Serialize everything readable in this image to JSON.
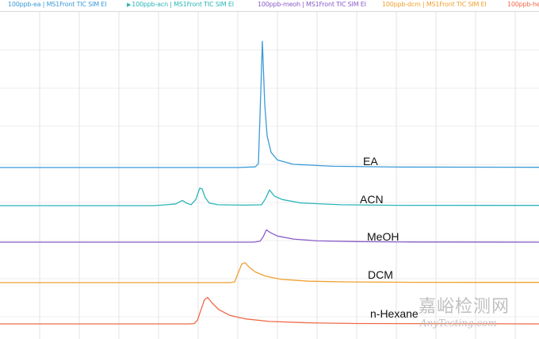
{
  "legend": [
    {
      "label": "100ppb-ea | MS1Front TIC SIM EI",
      "color": "#3a9ad9",
      "active": false
    },
    {
      "label": "100ppb-acn | MS1Front TIC SIM EI",
      "color": "#2bb5b8",
      "active": true
    },
    {
      "label": "100ppb-meoh | MS1Front TIC SIM EI",
      "color": "#8a5cc9",
      "active": false
    },
    {
      "label": "100ppb-dcm | MS1Front TIC SIM EI",
      "color": "#f0a030",
      "active": false
    },
    {
      "label": "100ppb-he",
      "color": "#f06a4a",
      "active": false
    }
  ],
  "watermark": {
    "cn": "嘉峪检测网",
    "en": "AnyTesting.com"
  },
  "chart_data": {
    "type": "line",
    "title": "",
    "xlabel": "",
    "ylabel": "",
    "grid": true,
    "stacked_offset": true,
    "series": [
      {
        "name": "EA",
        "color": "#3a9ad9",
        "points": [
          [
            0,
            0
          ],
          [
            300,
            0
          ],
          [
            322,
            0.5
          ],
          [
            326,
            3
          ],
          [
            329,
            60
          ],
          [
            331,
            100
          ],
          [
            334,
            50
          ],
          [
            337,
            25
          ],
          [
            342,
            12
          ],
          [
            350,
            6
          ],
          [
            370,
            2.5
          ],
          [
            420,
            1
          ],
          [
            500,
            0.4
          ],
          [
            680,
            0.2
          ]
        ]
      },
      {
        "name": "ACN",
        "color": "#2bb5b8",
        "points": [
          [
            0,
            0
          ],
          [
            195,
            0
          ],
          [
            210,
            1
          ],
          [
            222,
            2
          ],
          [
            230,
            6
          ],
          [
            235,
            3
          ],
          [
            241,
            1
          ],
          [
            247,
            7
          ],
          [
            252,
            20
          ],
          [
            255,
            19
          ],
          [
            259,
            9
          ],
          [
            264,
            3
          ],
          [
            275,
            1
          ],
          [
            310,
            0.5
          ],
          [
            330,
            1
          ],
          [
            335,
            8
          ],
          [
            340,
            18
          ],
          [
            346,
            11
          ],
          [
            356,
            7
          ],
          [
            380,
            3
          ],
          [
            430,
            1
          ],
          [
            500,
            0.4
          ],
          [
            680,
            0.3
          ]
        ]
      },
      {
        "name": "MeOH",
        "color": "#8a5cc9",
        "points": [
          [
            0,
            0
          ],
          [
            320,
            0
          ],
          [
            328,
            1
          ],
          [
            332,
            6
          ],
          [
            336,
            14
          ],
          [
            341,
            11
          ],
          [
            350,
            7
          ],
          [
            370,
            3.5
          ],
          [
            400,
            1.5
          ],
          [
            450,
            0.6
          ],
          [
            520,
            0.2
          ],
          [
            680,
            0
          ]
        ]
      },
      {
        "name": "DCM",
        "color": "#f0a030",
        "points": [
          [
            0,
            0
          ],
          [
            290,
            0
          ],
          [
            296,
            1
          ],
          [
            301,
            15
          ],
          [
            305,
            26
          ],
          [
            309,
            28
          ],
          [
            314,
            22
          ],
          [
            322,
            15
          ],
          [
            335,
            9
          ],
          [
            355,
            4.5
          ],
          [
            390,
            2
          ],
          [
            440,
            1
          ],
          [
            520,
            0.4
          ],
          [
            680,
            0.3
          ]
        ]
      },
      {
        "name": "n-Hexane",
        "color": "#f06a4a",
        "points": [
          [
            0,
            0
          ],
          [
            238,
            0
          ],
          [
            245,
            0.5
          ],
          [
            249,
            5
          ],
          [
            253,
            18
          ],
          [
            258,
            34
          ],
          [
            262,
            37
          ],
          [
            267,
            30
          ],
          [
            276,
            20
          ],
          [
            290,
            12
          ],
          [
            310,
            7
          ],
          [
            340,
            3.5
          ],
          [
            390,
            1.5
          ],
          [
            450,
            0.6
          ],
          [
            680,
            0
          ]
        ]
      }
    ]
  }
}
